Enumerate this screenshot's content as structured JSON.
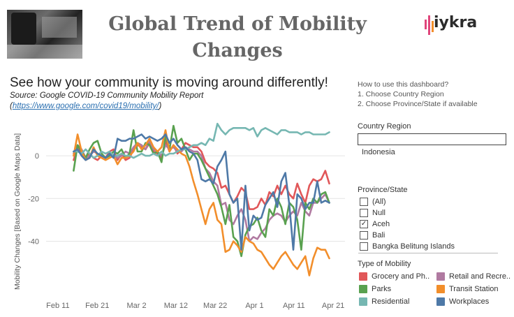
{
  "header": {
    "title_line1": "Global  Trend  of  Mobility",
    "title_line2": "Changes",
    "logo_text": "iykra"
  },
  "intro": {
    "headline": "See how your community is moving around differently!",
    "source": "Source: Google COVID-19 Community Mobility Report",
    "link_prefix": "(",
    "link_text": "https://www.google.com/covid19/mobility/",
    "link_suffix": ")"
  },
  "instructions": {
    "title": "How to use this dashboard?",
    "step1": "1. Choose Country Region",
    "step2": "2. Choose Province/State if available"
  },
  "country_filter": {
    "label": "Country Region",
    "value": "Indonesia"
  },
  "province_filter": {
    "label": "Province/State",
    "options": [
      {
        "label": "(All)",
        "checked": false
      },
      {
        "label": "Null",
        "checked": false
      },
      {
        "label": "Aceh",
        "checked": true
      },
      {
        "label": "Bali",
        "checked": false
      },
      {
        "label": "Bangka Belitung Islands",
        "checked": false
      }
    ]
  },
  "legend": {
    "title": "Type of Mobility",
    "items": [
      {
        "label": "Grocery and Ph..",
        "color": "#e15759"
      },
      {
        "label": "Retail and Recre..",
        "color": "#b07aa1"
      },
      {
        "label": "Parks",
        "color": "#59a14f"
      },
      {
        "label": "Transit Station",
        "color": "#f28e2b"
      },
      {
        "label": "Residential",
        "color": "#76b7b2"
      },
      {
        "label": "Workplaces",
        "color": "#4e79a7"
      }
    ]
  },
  "chart_data": {
    "type": "line",
    "title": "",
    "xlabel": "",
    "ylabel": "Mobility Changes [Based on Google Maps Data]",
    "ylim": [
      -65,
      18
    ],
    "yticks": [
      0,
      -20,
      -40
    ],
    "xtick_labels": [
      "Feb 11",
      "Feb 21",
      "Mar 2",
      "Mar 12",
      "Mar 22",
      "Apr 1",
      "Apr 11",
      "Apr 21"
    ],
    "xtick_days": [
      11,
      21,
      31,
      41,
      51,
      61,
      71,
      81
    ],
    "x_start_day": 15,
    "x_end_day": 80,
    "series": [
      {
        "name": "Grocery and Pharmacy",
        "color": "#e15759",
        "values": [
          -2,
          4,
          1,
          -2,
          1,
          -1,
          -2,
          0,
          -1,
          2,
          3,
          -2,
          1,
          -2,
          -1,
          3,
          5,
          4,
          3,
          6,
          2,
          1,
          -1,
          7,
          2,
          5,
          1,
          3,
          6,
          5,
          4,
          4,
          2,
          -3,
          -5,
          -6,
          -8,
          -15,
          -14,
          -18,
          -22,
          -19,
          -15,
          -17,
          -25,
          -25,
          -24,
          -20,
          -23,
          -17,
          -19,
          -14,
          -18,
          -14,
          -18,
          -20,
          -13,
          -18,
          -22,
          -14,
          -11,
          -12,
          -11,
          -7,
          -13
        ]
      },
      {
        "name": "Retail and Recreation",
        "color": "#b07aa1",
        "values": [
          1,
          5,
          3,
          -1,
          0,
          2,
          1,
          0,
          -1,
          1,
          0,
          -1,
          0,
          2,
          1,
          4,
          6,
          5,
          3,
          7,
          3,
          2,
          0,
          5,
          3,
          4,
          2,
          2,
          4,
          3,
          2,
          2,
          0,
          -6,
          -8,
          -12,
          -14,
          -23,
          -22,
          -30,
          -32,
          -28,
          -25,
          -30,
          -40,
          -38,
          -39,
          -36,
          -34,
          -30,
          -28,
          -27,
          -28,
          -31,
          -28,
          -26,
          -28,
          -22,
          -26,
          -28,
          -22,
          -22,
          -20,
          -18,
          -22
        ]
      },
      {
        "name": "Parks",
        "color": "#59a14f",
        "values": [
          -7,
          5,
          2,
          -1,
          3,
          6,
          7,
          1,
          -1,
          0,
          2,
          1,
          3,
          -1,
          1,
          12,
          2,
          2,
          6,
          5,
          1,
          2,
          -3,
          9,
          3,
          14,
          6,
          8,
          3,
          -2,
          1,
          1,
          -2,
          -6,
          -10,
          -14,
          -18,
          -24,
          -32,
          -23,
          -38,
          -40,
          -47,
          -37,
          -33,
          -32,
          -29,
          -35,
          -38,
          -25,
          -28,
          -20,
          -24,
          -32,
          -22,
          -24,
          -30,
          -44,
          -22,
          -25,
          -20,
          -22,
          -18,
          -17,
          -22
        ]
      },
      {
        "name": "Transit Station",
        "color": "#f28e2b",
        "values": [
          0,
          10,
          2,
          -2,
          -1,
          4,
          0,
          -1,
          -2,
          -1,
          0,
          -4,
          -1,
          -1,
          0,
          2,
          6,
          3,
          5,
          8,
          4,
          2,
          4,
          12,
          2,
          5,
          3,
          1,
          0,
          -5,
          -12,
          -18,
          -25,
          -32,
          -25,
          -22,
          -30,
          -32,
          -45,
          -44,
          -40,
          -42,
          -45,
          -38,
          -40,
          -41,
          -44,
          -45,
          -48,
          -51,
          -53,
          -50,
          -47,
          -45,
          -48,
          -51,
          -53,
          -50,
          -47,
          -56,
          -48,
          -43,
          -44,
          -44,
          -48
        ]
      },
      {
        "name": "Residential",
        "color": "#76b7b2",
        "values": [
          2,
          2,
          1,
          3,
          1,
          -1,
          0,
          2,
          1,
          2,
          0,
          0,
          1,
          0,
          0,
          -1,
          0,
          1,
          0,
          0,
          1,
          0,
          2,
          0,
          1,
          1,
          2,
          3,
          3,
          4,
          5,
          5,
          6,
          5,
          8,
          7,
          15,
          12,
          10,
          12,
          13,
          13,
          13,
          13,
          12,
          13,
          9,
          12,
          13,
          12,
          11,
          10,
          12,
          12,
          11,
          11,
          11,
          10,
          11,
          11,
          10,
          10,
          10,
          10,
          11
        ]
      },
      {
        "name": "Workplaces",
        "color": "#4e79a7",
        "values": [
          2,
          3,
          0,
          -2,
          -1,
          3,
          1,
          0,
          -1,
          1,
          -1,
          8,
          7,
          7,
          8,
          8,
          9,
          10,
          8,
          9,
          8,
          7,
          8,
          10,
          6,
          8,
          5,
          3,
          4,
          2,
          1,
          -2,
          -11,
          -12,
          -11,
          -13,
          -5,
          -2,
          2,
          -18,
          -22,
          -20,
          -44,
          -14,
          -35,
          -28,
          -30,
          -29,
          -23,
          -20,
          -17,
          -24,
          -12,
          -8,
          -23,
          -44,
          -18,
          -20,
          -25,
          -22,
          -22,
          -12,
          -22,
          -21,
          -22
        ]
      }
    ]
  }
}
